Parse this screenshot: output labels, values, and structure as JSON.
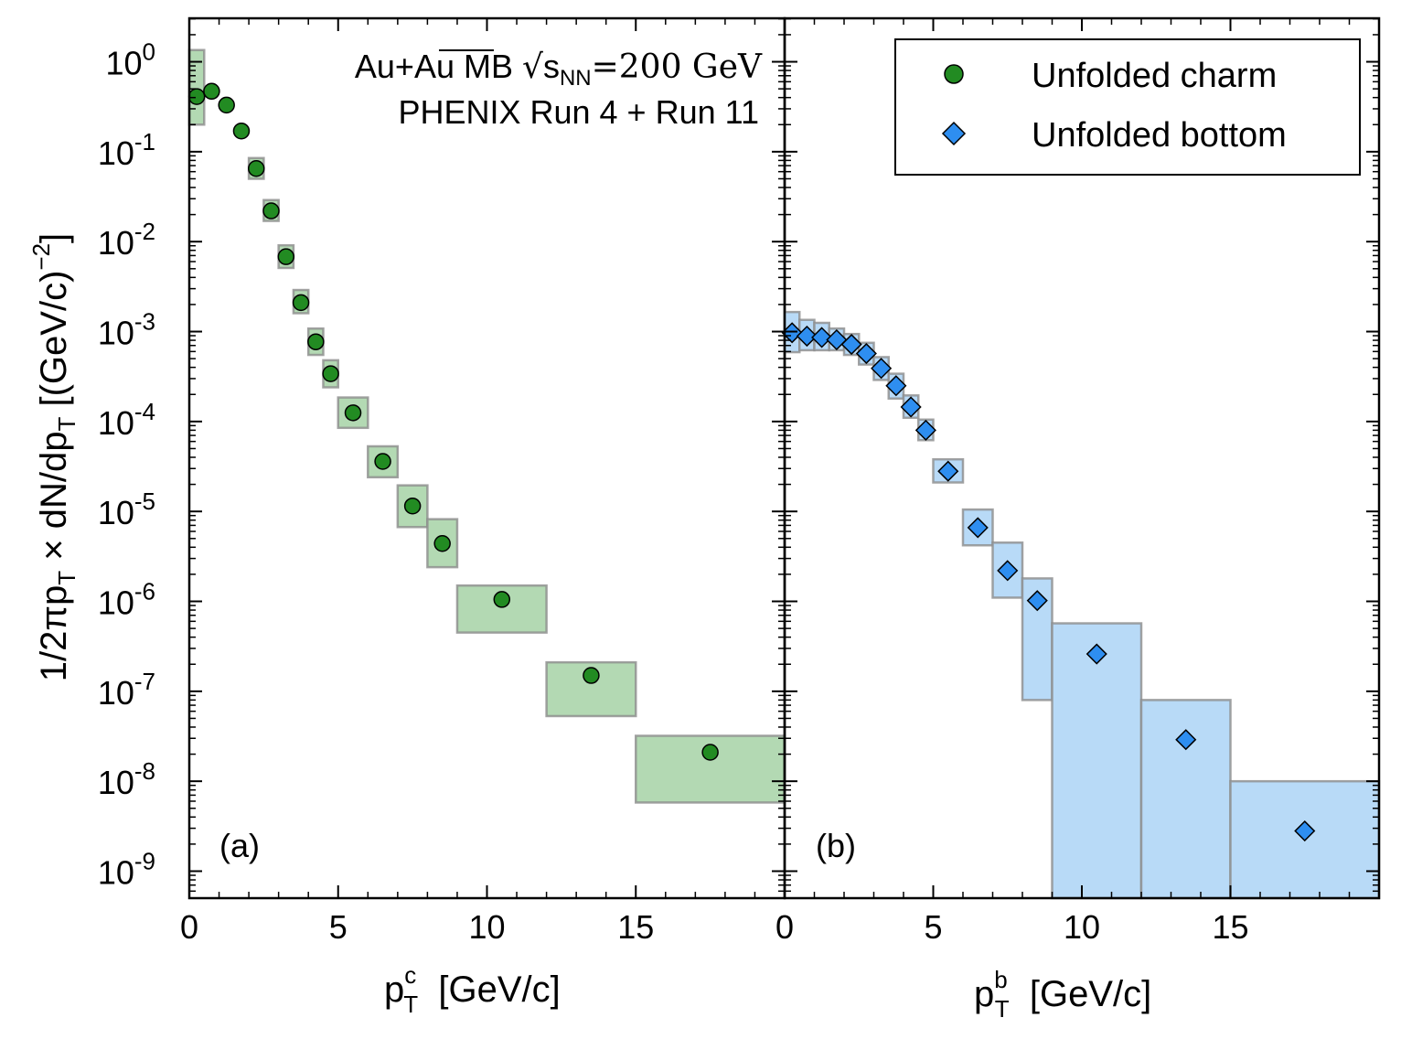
{
  "figure": {
    "ylabel": {
      "main": "1/2πp",
      "sub": "T",
      "rest": " × dN/dp",
      "sub2": "T",
      "unit": " [(GeV/c)",
      "sup": "−2",
      "end": "]"
    },
    "yticks": [
      {
        "base": "10",
        "exp": "0",
        "value": 1
      },
      {
        "base": "10",
        "exp": "-1",
        "value": 0.1
      },
      {
        "base": "10",
        "exp": "-2",
        "value": 0.01
      },
      {
        "base": "10",
        "exp": "-3",
        "value": 0.001
      },
      {
        "base": "10",
        "exp": "-4",
        "value": 0.0001
      },
      {
        "base": "10",
        "exp": "-5",
        "value": 1e-05
      },
      {
        "base": "10",
        "exp": "-6",
        "value": 1e-06
      },
      {
        "base": "10",
        "exp": "-7",
        "value": 1e-07
      },
      {
        "base": "10",
        "exp": "-8",
        "value": 1e-08
      },
      {
        "base": "10",
        "exp": "-9",
        "value": 1e-09
      }
    ],
    "colors": {
      "charm_marker": "#228b22",
      "charm_box": "#b3d9b3",
      "bottom_marker": "#2e8ef0",
      "bottom_box": "#b8daf7",
      "box_edge": "#8c8c8c"
    }
  },
  "chart_data": [
    {
      "type": "scatter",
      "panel_label": "(a)",
      "annotation_line1_prefix": "Au+Au MB ",
      "annotation_sqrt": "s",
      "annotation_sqrt_sub": "NN",
      "annotation_line1_suffix": "=200 GeV",
      "annotation_line2": "PHENIX Run 4 + Run 11",
      "xlabel_main": "p",
      "xlabel_sub": "T",
      "xlabel_sup": "c",
      "xlabel_unit": "  [GeV/c]",
      "xlim": [
        0,
        20
      ],
      "ylim": [
        5e-10,
        3
      ],
      "log_y": true,
      "xticks": [
        "0",
        "5",
        "10",
        "15"
      ],
      "series": [
        {
          "name": "Unfolded charm",
          "marker": "circle",
          "points": [
            {
              "x": 0.25,
              "y": 0.41,
              "x_lo": 0,
              "x_hi": 0.5,
              "y_lo": 0.2,
              "y_hi": 1.35
            },
            {
              "x": 0.75,
              "y": 0.47,
              "x_lo": 0.5,
              "x_hi": 1.0,
              "y_lo": null,
              "y_hi": null
            },
            {
              "x": 1.25,
              "y": 0.33,
              "x_lo": 1.0,
              "x_hi": 1.5,
              "y_lo": null,
              "y_hi": null
            },
            {
              "x": 1.75,
              "y": 0.17,
              "x_lo": 1.5,
              "x_hi": 2.0,
              "y_lo": null,
              "y_hi": null
            },
            {
              "x": 2.25,
              "y": 0.065,
              "x_lo": 2.0,
              "x_hi": 2.5,
              "y_lo": 0.05,
              "y_hi": 0.085
            },
            {
              "x": 2.75,
              "y": 0.022,
              "x_lo": 2.5,
              "x_hi": 3.0,
              "y_lo": 0.017,
              "y_hi": 0.029
            },
            {
              "x": 3.25,
              "y": 0.0068,
              "x_lo": 3.0,
              "x_hi": 3.5,
              "y_lo": 0.0051,
              "y_hi": 0.0091
            },
            {
              "x": 3.75,
              "y": 0.0021,
              "x_lo": 3.5,
              "x_hi": 4.0,
              "y_lo": 0.0016,
              "y_hi": 0.0029
            },
            {
              "x": 4.25,
              "y": 0.00077,
              "x_lo": 4.0,
              "x_hi": 4.5,
              "y_lo": 0.00055,
              "y_hi": 0.00108
            },
            {
              "x": 4.75,
              "y": 0.00034,
              "x_lo": 4.5,
              "x_hi": 5.0,
              "y_lo": 0.00024,
              "y_hi": 0.00048
            },
            {
              "x": 5.5,
              "y": 0.000125,
              "x_lo": 5.0,
              "x_hi": 6.0,
              "y_lo": 8.5e-05,
              "y_hi": 0.000185
            },
            {
              "x": 6.5,
              "y": 3.6e-05,
              "x_lo": 6.0,
              "x_hi": 7.0,
              "y_lo": 2.4e-05,
              "y_hi": 5.3e-05
            },
            {
              "x": 7.5,
              "y": 1.15e-05,
              "x_lo": 7.0,
              "x_hi": 8.0,
              "y_lo": 6.7e-06,
              "y_hi": 1.95e-05
            },
            {
              "x": 8.5,
              "y": 4.4e-06,
              "x_lo": 8.0,
              "x_hi": 9.0,
              "y_lo": 2.4e-06,
              "y_hi": 8.2e-06
            },
            {
              "x": 10.5,
              "y": 1.05e-06,
              "x_lo": 9.0,
              "x_hi": 12.0,
              "y_lo": 4.5e-07,
              "y_hi": 1.5e-06
            },
            {
              "x": 13.5,
              "y": 1.5e-07,
              "x_lo": 12.0,
              "x_hi": 15.0,
              "y_lo": 5.3e-08,
              "y_hi": 2.1e-07
            },
            {
              "x": 17.5,
              "y": 2.1e-08,
              "x_lo": 15.0,
              "x_hi": 20.0,
              "y_lo": 5.8e-09,
              "y_hi": 3.2e-08
            }
          ]
        }
      ]
    },
    {
      "type": "scatter",
      "panel_label": "(b)",
      "xlabel_main": "p",
      "xlabel_sub": "T",
      "xlabel_sup": "b",
      "xlabel_unit": "  [GeV/c]",
      "xlim": [
        0,
        20
      ],
      "ylim": [
        5e-10,
        3
      ],
      "log_y": true,
      "xticks": [
        "0",
        "5",
        "10",
        "15"
      ],
      "legend": {
        "location": "top-right",
        "entries": [
          "Unfolded charm",
          "Unfolded bottom"
        ]
      },
      "series": [
        {
          "name": "Unfolded bottom",
          "marker": "diamond",
          "points": [
            {
              "x": 0.25,
              "y": 0.00097,
              "x_lo": 0,
              "x_hi": 0.5,
              "y_lo": 0.00059,
              "y_hi": 0.00165
            },
            {
              "x": 0.75,
              "y": 0.00089,
              "x_lo": 0.5,
              "x_hi": 1.0,
              "y_lo": 0.00062,
              "y_hi": 0.00135
            },
            {
              "x": 1.25,
              "y": 0.00086,
              "x_lo": 1.0,
              "x_hi": 1.5,
              "y_lo": 0.00062,
              "y_hi": 0.00125
            },
            {
              "x": 1.75,
              "y": 0.00081,
              "x_lo": 1.5,
              "x_hi": 2.0,
              "y_lo": 0.00062,
              "y_hi": 0.00108
            },
            {
              "x": 2.25,
              "y": 0.00072,
              "x_lo": 2.0,
              "x_hi": 2.5,
              "y_lo": 0.00055,
              "y_hi": 0.00094
            },
            {
              "x": 2.75,
              "y": 0.00057,
              "x_lo": 2.5,
              "x_hi": 3.0,
              "y_lo": 0.00043,
              "y_hi": 0.00075
            },
            {
              "x": 3.25,
              "y": 0.00039,
              "x_lo": 3.0,
              "x_hi": 3.5,
              "y_lo": 0.00029,
              "y_hi": 0.00052
            },
            {
              "x": 3.75,
              "y": 0.00025,
              "x_lo": 3.5,
              "x_hi": 4.0,
              "y_lo": 0.00018,
              "y_hi": 0.00034
            },
            {
              "x": 4.25,
              "y": 0.000145,
              "x_lo": 4.0,
              "x_hi": 4.5,
              "y_lo": 0.00011,
              "y_hi": 0.000195
            },
            {
              "x": 4.75,
              "y": 8e-05,
              "x_lo": 4.5,
              "x_hi": 5.0,
              "y_lo": 6.2e-05,
              "y_hi": 0.000105
            },
            {
              "x": 5.5,
              "y": 2.8e-05,
              "x_lo": 5.0,
              "x_hi": 6.0,
              "y_lo": 2.1e-05,
              "y_hi": 3.8e-05
            },
            {
              "x": 6.5,
              "y": 6.6e-06,
              "x_lo": 6.0,
              "x_hi": 7.0,
              "y_lo": 4.2e-06,
              "y_hi": 1.05e-05
            },
            {
              "x": 7.5,
              "y": 2.2e-06,
              "x_lo": 7.0,
              "x_hi": 8.0,
              "y_lo": 1.1e-06,
              "y_hi": 4.5e-06
            },
            {
              "x": 8.5,
              "y": 1.02e-06,
              "x_lo": 8.0,
              "x_hi": 9.0,
              "y_lo": 8e-08,
              "y_hi": 1.8e-06
            },
            {
              "x": 10.5,
              "y": 2.6e-07,
              "x_lo": 9.0,
              "x_hi": 12.0,
              "y_lo": 5e-10,
              "y_hi": 5.7e-07
            },
            {
              "x": 13.5,
              "y": 2.9e-08,
              "x_lo": 12.0,
              "x_hi": 15.0,
              "y_lo": 5e-10,
              "y_hi": 8e-08
            },
            {
              "x": 17.5,
              "y": 2.8e-09,
              "x_lo": 15.0,
              "x_hi": 20.0,
              "y_lo": 5e-10,
              "y_hi": 1e-08
            }
          ]
        }
      ]
    }
  ]
}
